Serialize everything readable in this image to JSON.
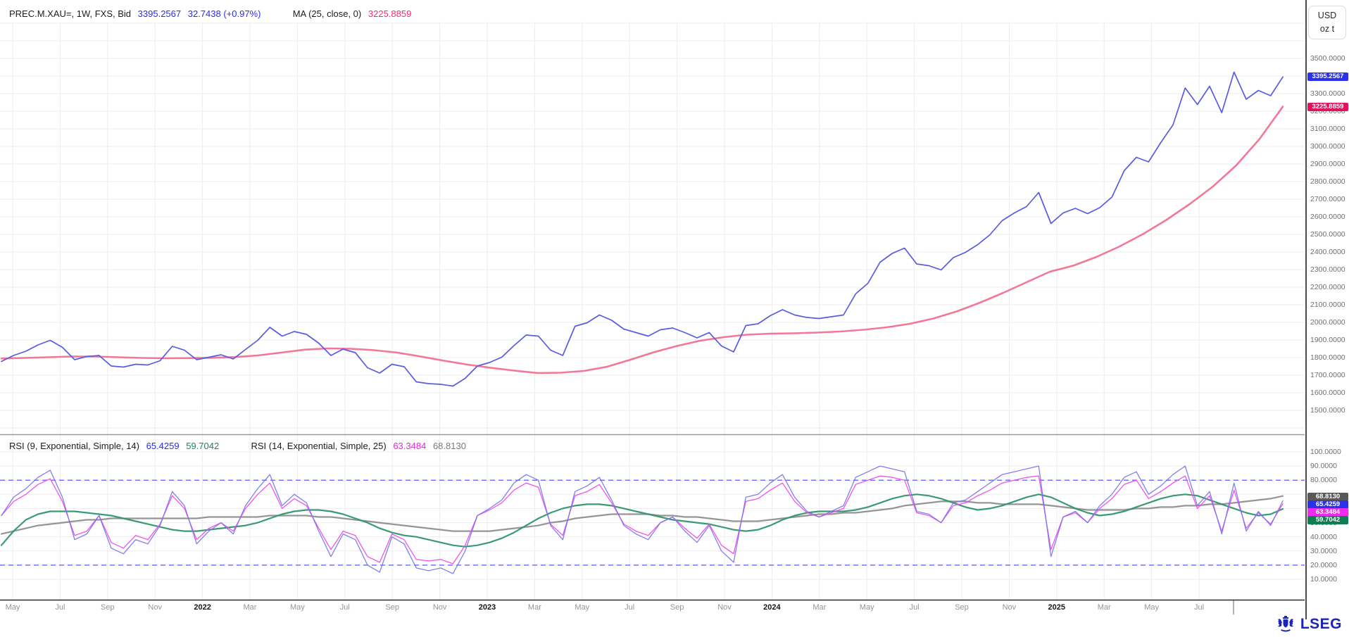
{
  "header": {
    "instrument": "PREC.M.XAU=, 1W, FXS, Bid",
    "price_last": "3395.2567",
    "price_change": "32.7438 (+0.97%)",
    "ma_label": "MA (25, close, 0)",
    "ma_value": "3225.8859"
  },
  "rsi_header": {
    "rsi1_label": "RSI (9, Exponential, Simple, 14)",
    "rsi1_value": "65.4259",
    "rsi1_signal": "59.7042",
    "rsi2_label": "RSI (14, Exponential, Simple, 25)",
    "rsi2_value": "63.3484",
    "rsi2_signal": "68.8130"
  },
  "axis": {
    "unit_line1": "USD",
    "unit_line2": "oz t",
    "price_ticks": [
      "3500.0000",
      "3400.0000",
      "3300.0000",
      "3200.0000",
      "3100.0000",
      "3000.0000",
      "2900.0000",
      "2800.0000",
      "2700.0000",
      "2600.0000",
      "2500.0000",
      "2400.0000",
      "2300.0000",
      "2200.0000",
      "2100.0000",
      "2000.0000",
      "1900.0000",
      "1800.0000",
      "1700.0000",
      "1600.0000",
      "1500.0000"
    ],
    "rsi_ticks": [
      "100.0000",
      "90.0000",
      "80.0000",
      "50.0000",
      "40.0000",
      "30.0000",
      "20.0000",
      "10.0000"
    ],
    "time_labels": [
      {
        "text": "May",
        "bold": false
      },
      {
        "text": "Jul",
        "bold": false
      },
      {
        "text": "Sep",
        "bold": false
      },
      {
        "text": "Nov",
        "bold": false
      },
      {
        "text": "2022",
        "bold": true
      },
      {
        "text": "Mar",
        "bold": false
      },
      {
        "text": "May",
        "bold": false
      },
      {
        "text": "Jul",
        "bold": false
      },
      {
        "text": "Sep",
        "bold": false
      },
      {
        "text": "Nov",
        "bold": false
      },
      {
        "text": "2023",
        "bold": true
      },
      {
        "text": "Mar",
        "bold": false
      },
      {
        "text": "May",
        "bold": false
      },
      {
        "text": "Jul",
        "bold": false
      },
      {
        "text": "Sep",
        "bold": false
      },
      {
        "text": "Nov",
        "bold": false
      },
      {
        "text": "2024",
        "bold": true
      },
      {
        "text": "Mar",
        "bold": false
      },
      {
        "text": "May",
        "bold": false
      },
      {
        "text": "Jul",
        "bold": false
      },
      {
        "text": "Sep",
        "bold": false
      },
      {
        "text": "Nov",
        "bold": false
      },
      {
        "text": "2025",
        "bold": true
      },
      {
        "text": "Mar",
        "bold": false
      },
      {
        "text": "May",
        "bold": false
      },
      {
        "text": "Jul",
        "bold": false
      }
    ],
    "price_badges": [
      {
        "text": "3395.2567",
        "value": 3395.2567,
        "color": "#2c32ea"
      },
      {
        "text": "3225.8859",
        "value": 3225.8859,
        "color": "#e0135f"
      }
    ],
    "rsi_badges": [
      {
        "text": "68.8130",
        "color": "#595959"
      },
      {
        "text": "65.4259",
        "color": "#2c32ea"
      },
      {
        "text": "63.3484",
        "color": "#ee2bee"
      },
      {
        "text": "59.7042",
        "color": "#0e7d50"
      }
    ]
  },
  "colors": {
    "price_line": "#585ce0",
    "ma_line": "#f2688c",
    "rsi_fast": "#7372ea",
    "rsi_fast_signal": "#2f9668",
    "rsi_slow": "#ee4bec",
    "rsi_slow_signal": "#8f8f8f",
    "level_line": "#4b4bf0",
    "grid": "#ededed",
    "legend_blue": "#2b2bf5",
    "legend_pink": "#ef2e68",
    "legend_magenta": "#ee22e0",
    "legend_green": "#14885a",
    "legend_gray": "#7a7a7a"
  },
  "logo": {
    "text": "LSEG"
  },
  "chart_data": {
    "type": "line",
    "title": "PREC.M.XAU= 1W Bid with MA(25) and RSI indicators",
    "x_range": {
      "start": "2021-04",
      "end": "2025-08",
      "interval": "weekly"
    },
    "legend_position": "top-left",
    "grid": true,
    "panes": [
      {
        "name": "price",
        "ylabel": "USD / oz t",
        "ylim": [
          1384,
          3712
        ],
        "grid_step": 100,
        "series": [
          {
            "name": "PREC.M.XAU= Bid",
            "color": "#585ce0",
            "last": 3395.2567,
            "change": 32.7438,
            "change_pct": 0.97,
            "values": [
              1778,
              1812,
              1836,
              1872,
              1898,
              1858,
              1788,
              1806,
              1812,
              1752,
              1746,
              1762,
              1758,
              1782,
              1864,
              1842,
              1788,
              1802,
              1816,
              1792,
              1846,
              1898,
              1972,
              1922,
              1948,
              1932,
              1882,
              1812,
              1848,
              1828,
              1742,
              1712,
              1762,
              1748,
              1662,
              1652,
              1648,
              1638,
              1682,
              1752,
              1772,
              1802,
              1868,
              1928,
              1922,
              1842,
              1812,
              1978,
              1998,
              2042,
              2012,
              1962,
              1942,
              1922,
              1958,
              1968,
              1942,
              1912,
              1942,
              1866,
              1832,
              1982,
              1992,
              2038,
              2072,
              2042,
              2028,
              2022,
              2032,
              2042,
              2162,
              2222,
              2342,
              2392,
              2422,
              2332,
              2322,
              2298,
              2368,
              2398,
              2442,
              2498,
              2578,
              2622,
              2658,
              2738,
              2562,
              2622,
              2648,
              2618,
              2652,
              2712,
              2862,
              2938,
              2912,
              3022,
              3122,
              3332,
              3238,
              3342,
              3192,
              3422,
              3268,
              3318,
              3288,
              3395
            ]
          },
          {
            "name": "MA (25, close, 0)",
            "color": "#f2688c",
            "last": 3225.8859,
            "values": [
              1795,
              1798,
              1802,
              1806,
              1806,
              1802,
              1798,
              1796,
              1797,
              1799,
              1803,
              1812,
              1828,
              1845,
              1852,
              1850,
              1842,
              1828,
              1806,
              1782,
              1760,
              1742,
              1726,
              1712,
              1714,
              1724,
              1748,
              1788,
              1830,
              1866,
              1896,
              1916,
              1930,
              1936,
              1938,
              1942,
              1948,
              1958,
              1972,
              1992,
              2022,
              2062,
              2112,
              2168,
              2228,
              2288,
              2322,
              2372,
              2432,
              2502,
              2582,
              2672,
              2772,
              2892,
              3042,
              3226
            ]
          }
        ]
      },
      {
        "name": "rsi",
        "ylim": [
          -5,
          111
        ],
        "grid_step": 10,
        "levels": [
          80,
          20
        ],
        "series": [
          {
            "name": "RSI (9, Exponential) ",
            "color": "#7372ea",
            "last": 65.4259,
            "values": [
              55,
              68,
              74,
              82,
              87,
              68,
              38,
              42,
              55,
              32,
              28,
              38,
              35,
              48,
              72,
              62,
              35,
              44,
              50,
              42,
              62,
              74,
              84,
              62,
              70,
              64,
              44,
              26,
              42,
              38,
              20,
              15,
              40,
              35,
              18,
              16,
              18,
              14,
              30,
              55,
              60,
              66,
              78,
              84,
              80,
              48,
              38,
              72,
              76,
              82,
              66,
              48,
              42,
              38,
              50,
              54,
              44,
              36,
              48,
              30,
              22,
              68,
              70,
              78,
              84,
              68,
              58,
              54,
              58,
              62,
              82,
              86,
              90,
              88,
              86,
              58,
              56,
              50,
              64,
              66,
              72,
              78,
              84,
              86,
              88,
              90,
              26,
              54,
              58,
              50,
              62,
              70,
              82,
              86,
              70,
              76,
              84,
              90,
              62,
              72,
              42,
              78,
              44,
              58,
              48,
              65.4
            ]
          },
          {
            "name": "RSI (9) Simple signal 14",
            "color": "#2f9668",
            "last": 59.7042,
            "values": [
              34,
              44,
              52,
              56,
              58,
              58,
              58,
              57,
              56,
              55,
              53,
              51,
              49,
              47,
              45,
              44,
              44,
              45,
              46,
              47,
              48,
              50,
              53,
              56,
              58,
              59,
              59,
              58,
              56,
              53,
              50,
              46,
              43,
              41,
              40,
              38,
              36,
              34,
              33,
              34,
              36,
              39,
              43,
              48,
              53,
              57,
              60,
              62,
              63,
              63,
              62,
              60,
              58,
              56,
              54,
              52,
              51,
              50,
              49,
              47,
              45,
              44,
              45,
              48,
              52,
              55,
              57,
              58,
              58,
              58,
              59,
              61,
              64,
              67,
              69,
              70,
              69,
              67,
              64,
              61,
              59,
              60,
              62,
              65,
              68,
              70,
              68,
              64,
              60,
              57,
              55,
              56,
              58,
              61,
              64,
              67,
              69,
              70,
              69,
              66,
              63,
              60,
              57,
              55,
              56,
              59.7
            ]
          },
          {
            "name": "RSI (14, Exponential)",
            "color": "#ee4bec",
            "last": 63.3484,
            "values": [
              55,
              65,
              70,
              77,
              81,
              65,
              41,
              44,
              55,
              36,
              32,
              41,
              38,
              49,
              69,
              60,
              38,
              46,
              50,
              44,
              60,
              70,
              78,
              60,
              67,
              62,
              46,
              31,
              44,
              41,
              26,
              22,
              42,
              38,
              24,
              23,
              24,
              21,
              34,
              55,
              59,
              64,
              73,
              78,
              75,
              49,
              41,
              69,
              72,
              77,
              64,
              49,
              44,
              41,
              50,
              54,
              46,
              39,
              49,
              34,
              28,
              65,
              67,
              73,
              78,
              65,
              57,
              54,
              57,
              60,
              77,
              80,
              83,
              82,
              80,
              57,
              55,
              50,
              62,
              64,
              69,
              73,
              78,
              80,
              82,
              83,
              31,
              54,
              57,
              50,
              60,
              67,
              77,
              80,
              67,
              72,
              78,
              83,
              60,
              69,
              44,
              73,
              46,
              57,
              49,
              63.3
            ]
          },
          {
            "name": "RSI (14) Simple signal 25",
            "color": "#8f8f8f",
            "last": 68.813,
            "values": [
              42,
              44,
              46,
              48,
              49,
              50,
              51,
              52,
              52,
              53,
              53,
              53,
              53,
              53,
              53,
              53,
              53,
              54,
              54,
              54,
              54,
              54,
              55,
              55,
              55,
              55,
              54,
              54,
              53,
              52,
              51,
              50,
              49,
              48,
              47,
              46,
              45,
              44,
              44,
              44,
              44,
              45,
              46,
              47,
              48,
              50,
              51,
              53,
              54,
              55,
              56,
              56,
              56,
              56,
              55,
              55,
              54,
              54,
              53,
              52,
              51,
              51,
              51,
              52,
              53,
              54,
              55,
              56,
              56,
              57,
              57,
              58,
              59,
              60,
              62,
              63,
              64,
              65,
              65,
              65,
              64,
              64,
              63,
              63,
              63,
              63,
              62,
              61,
              60,
              59,
              59,
              59,
              59,
              60,
              60,
              61,
              61,
              62,
              62,
              63,
              63,
              64,
              65,
              66,
              67,
              68.8
            ]
          }
        ]
      }
    ]
  }
}
